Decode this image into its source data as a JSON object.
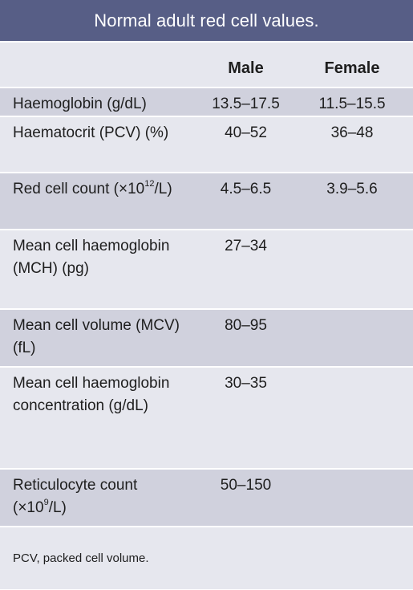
{
  "title": "Normal adult red cell values.",
  "columns": {
    "male": "Male",
    "female": "Female"
  },
  "rows": [
    {
      "label": "Haemoglobin (g/dL)",
      "male": "13.5–17.5",
      "female": "11.5–15.5"
    },
    {
      "label": "Haematocrit (PCV) (%)",
      "male": "40–52",
      "female": "36–48"
    },
    {
      "label_pre": "Red cell count (×10",
      "label_sup": "12",
      "label_post": "/L)",
      "male": "4.5–6.5",
      "female": "3.9–5.6"
    },
    {
      "label": "Mean cell haemoglobin (MCH) (pg)",
      "male": "27–34",
      "female": ""
    },
    {
      "label": "Mean cell volume (MCV) (fL)",
      "male": "80–95",
      "female": ""
    },
    {
      "label": "Mean cell haemoglobin concentration (g/dL)",
      "male": "30–35",
      "female": ""
    },
    {
      "label_pre": "Reticulocyte count (×10",
      "label_sup": "9",
      "label_post": "/L)",
      "male": "50–150",
      "female": ""
    }
  ],
  "footnote": "PCV, packed cell volume.",
  "colors": {
    "title_bg": "#575e86",
    "row_dark": "#d0d1dd",
    "row_light": "#e6e7ee"
  }
}
